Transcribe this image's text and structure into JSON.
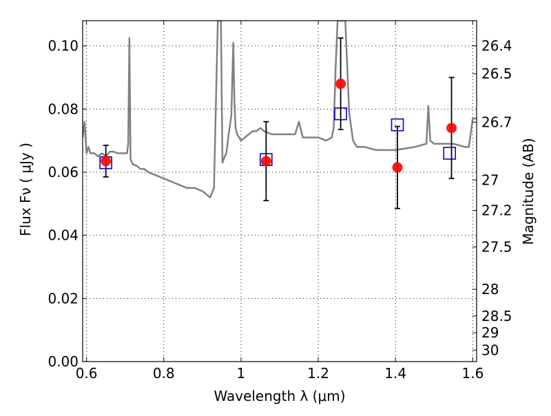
{
  "chart_data": {
    "type": "scatter",
    "xlabel": "Wavelength  λ (μm)",
    "ylabel": "Flux  Fν  ( μJy )",
    "y2label": "Magnitude (AB)",
    "xlim": [
      0.59,
      1.61
    ],
    "ylim": [
      0.0,
      0.108
    ],
    "grid": true,
    "x_ticks": [
      {
        "value": 0.6,
        "label": "0.6"
      },
      {
        "value": 0.8,
        "label": "0.8"
      },
      {
        "value": 1.0,
        "label": "1"
      },
      {
        "value": 1.2,
        "label": "1.2"
      },
      {
        "value": 1.4,
        "label": "1.4"
      },
      {
        "value": 1.6,
        "label": "1.6"
      }
    ],
    "y_ticks": [
      {
        "value": 0.0,
        "label": "0.00"
      },
      {
        "value": 0.02,
        "label": "0.02"
      },
      {
        "value": 0.04,
        "label": "0.04"
      },
      {
        "value": 0.06,
        "label": "0.06"
      },
      {
        "value": 0.08,
        "label": "0.08"
      },
      {
        "value": 0.1,
        "label": "0.10"
      }
    ],
    "y2_ticks": [
      {
        "mag": 26.4,
        "label": "26.4"
      },
      {
        "mag": 26.5,
        "label": "26.5"
      },
      {
        "mag": 26.7,
        "label": "26.7"
      },
      {
        "mag": 27.0,
        "label": "27"
      },
      {
        "mag": 27.2,
        "label": "27.2"
      },
      {
        "mag": 27.5,
        "label": "27.5"
      },
      {
        "mag": 28.0,
        "label": "28"
      },
      {
        "mag": 28.5,
        "label": "28.5"
      },
      {
        "mag": 29.0,
        "label": "29"
      },
      {
        "mag": 30.0,
        "label": "30"
      }
    ],
    "series": [
      {
        "kind": "line",
        "color": "#808080",
        "x": [
          0.59,
          0.595,
          0.6,
          0.605,
          0.61,
          0.62,
          0.63,
          0.64,
          0.65,
          0.66,
          0.67,
          0.68,
          0.69,
          0.7,
          0.705,
          0.708,
          0.711,
          0.714,
          0.72,
          0.73,
          0.74,
          0.75,
          0.76,
          0.78,
          0.8,
          0.82,
          0.84,
          0.86,
          0.88,
          0.9,
          0.92,
          0.93,
          0.94,
          0.945,
          0.948,
          0.952,
          0.955,
          0.958,
          0.962,
          0.968,
          0.975,
          0.98,
          0.983,
          0.986,
          0.99,
          1.0,
          1.01,
          1.02,
          1.03,
          1.04,
          1.05,
          1.06,
          1.08,
          1.1,
          1.12,
          1.14,
          1.15,
          1.16,
          1.18,
          1.2,
          1.22,
          1.235,
          1.24,
          1.245,
          1.25,
          1.26,
          1.265,
          1.27,
          1.28,
          1.29,
          1.3,
          1.32,
          1.35,
          1.4,
          1.45,
          1.48,
          1.485,
          1.49,
          1.5,
          1.55,
          1.58,
          1.59,
          1.6,
          1.61
        ],
        "y": [
          0.071,
          0.076,
          0.066,
          0.068,
          0.066,
          0.066,
          0.065,
          0.066,
          0.065,
          0.0665,
          0.0665,
          0.066,
          0.066,
          0.066,
          0.066,
          0.069,
          0.1025,
          0.064,
          0.0625,
          0.062,
          0.061,
          0.061,
          0.06,
          0.059,
          0.058,
          0.057,
          0.056,
          0.055,
          0.055,
          0.054,
          0.052,
          0.055,
          0.108,
          0.108,
          0.108,
          0.063,
          0.064,
          0.065,
          0.066,
          0.072,
          0.078,
          0.101,
          0.082,
          0.074,
          0.072,
          0.07,
          0.071,
          0.072,
          0.073,
          0.073,
          0.074,
          0.073,
          0.072,
          0.072,
          0.072,
          0.072,
          0.076,
          0.071,
          0.071,
          0.071,
          0.07,
          0.071,
          0.074,
          0.093,
          0.108,
          0.108,
          0.108,
          0.108,
          0.079,
          0.07,
          0.068,
          0.068,
          0.067,
          0.067,
          0.068,
          0.069,
          0.081,
          0.07,
          0.069,
          0.069,
          0.068,
          0.068,
          0.077,
          0.077
        ]
      },
      {
        "kind": "scatter",
        "marker": "square-open",
        "color": "#0000cc",
        "x": [
          0.65,
          1.065,
          1.258,
          1.405,
          1.54
        ],
        "y": [
          0.063,
          0.064,
          0.0785,
          0.075,
          0.066
        ]
      },
      {
        "kind": "scatter-errorbar",
        "marker": "circle",
        "color": "#ff0000",
        "x": [
          0.65,
          1.065,
          1.258,
          1.405,
          1.545
        ],
        "y": [
          0.0635,
          0.0635,
          0.088,
          0.0615,
          0.074
        ],
        "yerr": [
          0.005,
          0.0125,
          0.0145,
          0.013,
          0.016
        ]
      }
    ]
  }
}
